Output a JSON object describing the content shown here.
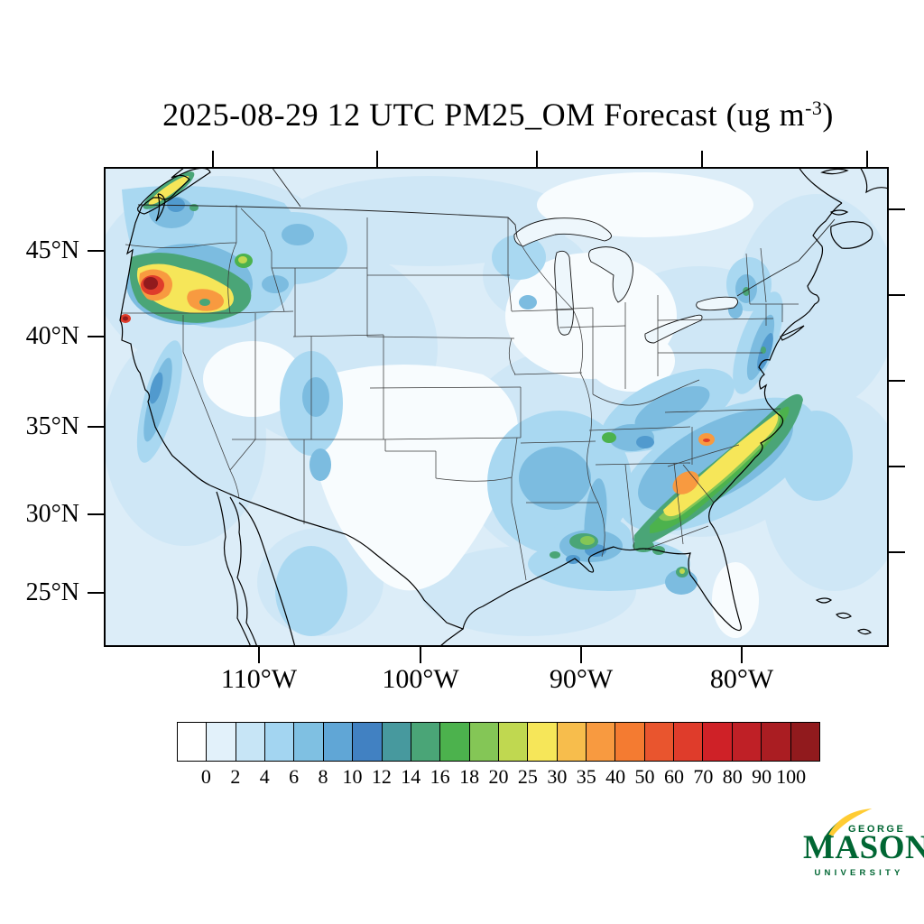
{
  "title": {
    "prefix": "2025-08-29 12 UTC PM25_OM Forecast (ug m",
    "exponent": "-3",
    "suffix": ")"
  },
  "map": {
    "lat_ticks": [
      "45°N",
      "40°N",
      "35°N",
      "30°N",
      "25°N"
    ],
    "lon_ticks": [
      "110°W",
      "100°W",
      "90°W",
      "80°W"
    ]
  },
  "colorbar": {
    "tick_labels": [
      "0",
      "2",
      "4",
      "6",
      "8",
      "10",
      "12",
      "14",
      "16",
      "18",
      "20",
      "25",
      "30",
      "35",
      "40",
      "50",
      "60",
      "70",
      "80",
      "90",
      "100"
    ],
    "colors": [
      "#ffffff",
      "#e2f1fa",
      "#c7e5f6",
      "#a3d5f1",
      "#7fc0e2",
      "#60a6d6",
      "#4181c2",
      "#47999e",
      "#4aa577",
      "#4cb24d",
      "#84c656",
      "#c0d850",
      "#f6e659",
      "#f7bd4c",
      "#f89a40",
      "#f47b31",
      "#e9552e",
      "#df3c2b",
      "#cf2127",
      "#bf2026",
      "#aa1d22",
      "#911a1d"
    ]
  },
  "logo": {
    "line1": "GEORGE",
    "line2": "MASON",
    "line3": "UNIVERSITY",
    "green": "#006633",
    "gold": "#FFCC33"
  },
  "chart_data": {
    "type": "heatmap",
    "title": "2025-08-29 12 UTC PM25_OM Forecast (ug m-3)",
    "variable": "PM25_OM",
    "units": "ug m-3",
    "valid_time": "2025-08-29 12 UTC",
    "region": "Continental United States (conic projection)",
    "x_axis": {
      "label": "Longitude",
      "ticks": [
        "110°W",
        "100°W",
        "90°W",
        "80°W"
      ]
    },
    "y_axis": {
      "label": "Latitude",
      "ticks": [
        "45°N",
        "40°N",
        "35°N",
        "30°N",
        "25°N"
      ]
    },
    "levels": [
      0,
      2,
      4,
      6,
      8,
      10,
      12,
      14,
      16,
      18,
      20,
      25,
      30,
      35,
      40,
      50,
      60,
      70,
      80,
      90,
      100
    ],
    "palette": [
      "#ffffff",
      "#e2f1fa",
      "#c7e5f6",
      "#a3d5f1",
      "#7fc0e2",
      "#60a6d6",
      "#4181c2",
      "#47999e",
      "#4aa577",
      "#4cb24d",
      "#84c656",
      "#c0d850",
      "#f6e659",
      "#f7bd4c",
      "#f89a40",
      "#f47b31",
      "#e9552e",
      "#df3c2b",
      "#cf2127",
      "#bf2026",
      "#aa1d22",
      "#911a1d"
    ],
    "legend_position": "bottom",
    "features": [
      {
        "region": "Southwest/central Oregon plume",
        "approx_location": "43N 123W",
        "value": ">100 dark-red core, rings 40-100, yellow-orange lobes 25-50 extending east"
      },
      {
        "region": "Northern California coast spot",
        "approx_location": "41N 124W",
        "value": "80-100 small isolated maximum"
      },
      {
        "region": "Central Idaho spot",
        "approx_location": "45N 115W",
        "value": "20-30"
      },
      {
        "region": "Vancouver Island, BC",
        "value": "18-30 narrow streaks along island"
      },
      {
        "region": "Southeast band Georgia-Carolinas-Virginia coast",
        "value": "widespread 14-25 green band; yellow 25-35 core; orange 35-50 spots central Georgia/South Carolina and near NC-VA coast"
      },
      {
        "region": "Gulf Coast Louisiana to Florida panhandle",
        "value": "14-25 scattered patches"
      },
      {
        "region": "Tampa, Florida",
        "value": "20-30 small spot"
      },
      {
        "region": "New Jersey / New York corridor",
        "value": "10-16 narrow streak"
      },
      {
        "region": "Sierra Nevada, Ozarks, Appalachians, Maine",
        "value": "6-12 ridges and spots"
      },
      {
        "region": "Background CONUS and oceans",
        "value": "0-6"
      }
    ]
  }
}
